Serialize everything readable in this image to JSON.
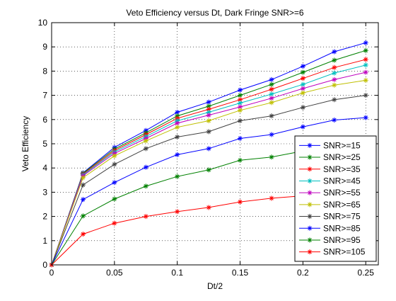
{
  "chart_data": {
    "type": "line",
    "title": "Veto Efficiency versus Dt, Dark Fringe SNR>=6",
    "xlabel": "Dt/2",
    "ylabel": "Veto Efficiency",
    "xlim": [
      0,
      0.26
    ],
    "ylim": [
      0,
      10
    ],
    "xticks": [
      0,
      0.05,
      0.1,
      0.15,
      0.2,
      0.25
    ],
    "xtick_labels": [
      "0",
      "0.05",
      "0.1",
      "0.15",
      "0.2",
      "0.25"
    ],
    "yticks": [
      0,
      1,
      2,
      3,
      4,
      5,
      6,
      7,
      8,
      9,
      10
    ],
    "ytick_labels": [
      "0",
      "1",
      "2",
      "3",
      "4",
      "5",
      "6",
      "7",
      "8",
      "9",
      "10"
    ],
    "grid": true,
    "legend_position": "bottom-right",
    "marker": "asterisk",
    "x": [
      0,
      0.025,
      0.05,
      0.075,
      0.1,
      0.125,
      0.15,
      0.175,
      0.2,
      0.225,
      0.25
    ],
    "series": [
      {
        "name": "SNR>=15",
        "color": "#0000ff",
        "values": [
          0,
          3.8,
          4.85,
          5.55,
          6.3,
          6.72,
          7.22,
          7.65,
          8.2,
          8.8,
          9.17
        ]
      },
      {
        "name": "SNR>=25",
        "color": "#008000",
        "values": [
          0,
          3.78,
          4.78,
          5.45,
          6.15,
          6.55,
          7.0,
          7.45,
          7.95,
          8.45,
          8.85
        ]
      },
      {
        "name": "SNR>=35",
        "color": "#ff0000",
        "values": [
          0,
          3.75,
          4.72,
          5.38,
          6.05,
          6.42,
          6.82,
          7.25,
          7.7,
          8.15,
          8.48
        ]
      },
      {
        "name": "SNR>=45",
        "color": "#00bfbf",
        "values": [
          0,
          3.72,
          4.66,
          5.3,
          5.95,
          6.3,
          6.68,
          7.05,
          7.45,
          7.92,
          8.25
        ]
      },
      {
        "name": "SNR>=55",
        "color": "#bf00bf",
        "values": [
          0,
          3.68,
          4.6,
          5.22,
          5.85,
          6.18,
          6.52,
          6.88,
          7.28,
          7.65,
          7.95
        ]
      },
      {
        "name": "SNR>=65",
        "color": "#bfbf00",
        "values": [
          0,
          3.6,
          4.5,
          5.12,
          5.68,
          5.95,
          6.38,
          6.7,
          7.1,
          7.42,
          7.62
        ]
      },
      {
        "name": "SNR>=75",
        "color": "#404040",
        "values": [
          0,
          3.3,
          4.15,
          4.8,
          5.28,
          5.5,
          5.95,
          6.15,
          6.5,
          6.82,
          7.0
        ]
      },
      {
        "name": "SNR>=85",
        "color": "#0000ff",
        "values": [
          0,
          2.7,
          3.4,
          4.03,
          4.55,
          4.8,
          5.22,
          5.38,
          5.7,
          5.98,
          6.08
        ]
      },
      {
        "name": "SNR>=95",
        "color": "#008000",
        "values": [
          0,
          2.02,
          2.72,
          3.25,
          3.65,
          3.92,
          4.32,
          4.45,
          4.7,
          4.88,
          5.0
        ]
      },
      {
        "name": "SNR>=105",
        "color": "#ff0000",
        "values": [
          0,
          1.27,
          1.72,
          2.0,
          2.2,
          2.37,
          2.6,
          2.75,
          2.85,
          3.0,
          3.15
        ]
      }
    ]
  }
}
